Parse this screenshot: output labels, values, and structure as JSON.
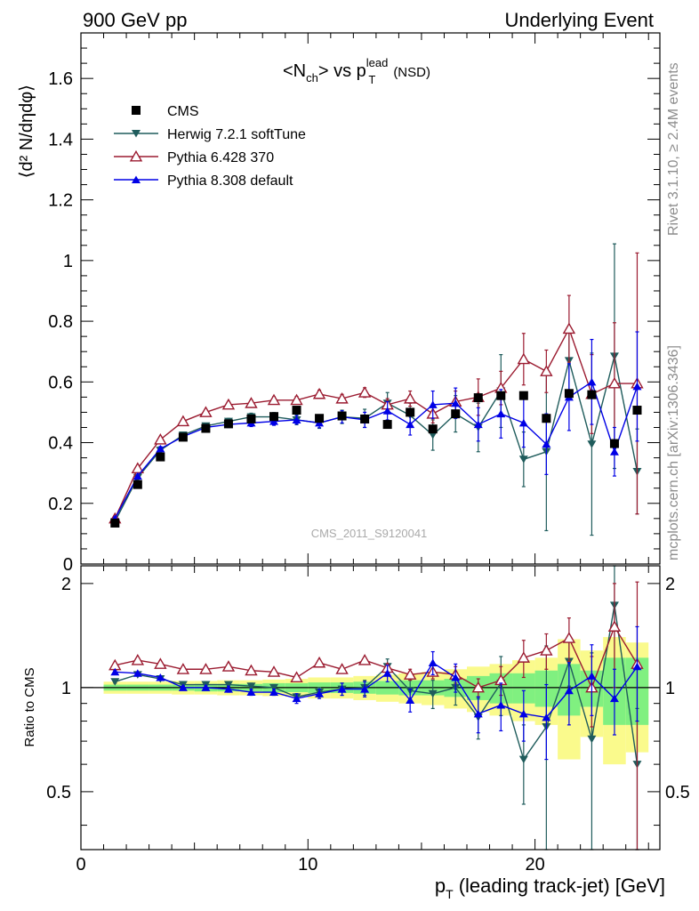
{
  "header": {
    "left": "900 GeV pp",
    "right": "Underlying Event"
  },
  "side_labels": {
    "rivet": "Rivet 3.1.10, ≥ 2.4M events",
    "mcplots": "mcplots.cern.ch [arXiv:1306.3436]"
  },
  "watermark": "CMS_2011_S9120041",
  "colors": {
    "cms": "#000000",
    "herwig": "#1f5c5c",
    "pythia6": "#9b1b30",
    "pythia8": "#0000e6",
    "band_inner": "#80f080",
    "band_outer": "#fafa8c"
  },
  "chart_data": [
    {
      "type": "scatter",
      "title": {
        "main": "<N",
        "main_sub": "ch",
        "mid": "> vs p",
        "sup": "lead",
        "sub2": "T",
        "tail": "(NSD)"
      },
      "ylabel": "⟨d² N/dηdφ⟩",
      "xlim": [
        0,
        25.5
      ],
      "ylim": [
        0,
        1.75
      ],
      "y_ticks": [
        {
          "v": 0,
          "label": "0"
        },
        {
          "v": 0.2,
          "label": "0.2"
        },
        {
          "v": 0.4,
          "label": "0.4"
        },
        {
          "v": 0.6,
          "label": "0.6"
        },
        {
          "v": 0.8,
          "label": "0.8"
        },
        {
          "v": 1.0,
          "label": "1"
        },
        {
          "v": 1.2,
          "label": "1.2"
        },
        {
          "v": 1.4,
          "label": "1.4"
        },
        {
          "v": 1.6,
          "label": "1.6"
        }
      ],
      "x": [
        1.5,
        2.5,
        3.5,
        4.5,
        5.5,
        6.5,
        7.5,
        8.5,
        9.5,
        10.5,
        11.5,
        12.5,
        13.5,
        14.5,
        15.5,
        16.5,
        17.5,
        18.5,
        19.5,
        20.5,
        21.5,
        22.5,
        23.5,
        24.5
      ],
      "legend": [
        {
          "name": "CMS",
          "key": "cms"
        },
        {
          "name": "Herwig 7.2.1 softTune",
          "key": "herwig"
        },
        {
          "name": "Pythia 6.428 370",
          "key": "pythia6"
        },
        {
          "name": "Pythia 8.308 default",
          "key": "pythia8"
        }
      ],
      "series": {
        "cms": {
          "name": "CMS",
          "values": [
            0.135,
            0.262,
            0.353,
            0.418,
            0.447,
            0.462,
            0.478,
            0.486,
            0.507,
            0.48,
            0.488,
            0.478,
            0.46,
            0.5,
            0.445,
            0.495,
            0.548,
            0.555,
            0.555,
            0.48,
            0.562,
            0.558,
            0.397,
            0.507
          ],
          "err": [
            0.003,
            0.003,
            0.003,
            0.003,
            0.003,
            0.003,
            0.003,
            0.003,
            0.003,
            0.003,
            0.003,
            0.003,
            0.003,
            0.003,
            0.003,
            0.003,
            0.003,
            0.003,
            0.003,
            0.003,
            0.003,
            0.003,
            0.003,
            0.003
          ]
        },
        "herwig": {
          "name": "Herwig 7.2.1 softTune",
          "values": [
            0.14,
            0.285,
            0.375,
            0.425,
            0.455,
            0.47,
            0.485,
            0.485,
            0.475,
            0.465,
            0.485,
            0.48,
            0.53,
            0.49,
            0.425,
            0.495,
            0.45,
            0.57,
            0.345,
            0.37,
            0.67,
            0.395,
            0.685,
            0.305
          ],
          "err": [
            0.005,
            0.006,
            0.007,
            0.008,
            0.009,
            0.01,
            0.012,
            0.014,
            0.016,
            0.018,
            0.022,
            0.03,
            0.035,
            0.04,
            0.05,
            0.06,
            0.08,
            0.12,
            0.09,
            0.26,
            0.1,
            0.3,
            0.37,
            0.14
          ]
        },
        "pythia6": {
          "name": "Pythia 6.428 370",
          "values": [
            0.15,
            0.315,
            0.41,
            0.47,
            0.5,
            0.525,
            0.53,
            0.54,
            0.54,
            0.56,
            0.545,
            0.565,
            0.525,
            0.545,
            0.495,
            0.535,
            0.55,
            0.58,
            0.675,
            0.635,
            0.775,
            0.56,
            0.595,
            0.595
          ],
          "err": [
            0.005,
            0.006,
            0.007,
            0.008,
            0.009,
            0.01,
            0.01,
            0.011,
            0.012,
            0.013,
            0.014,
            0.016,
            0.02,
            0.025,
            0.03,
            0.035,
            0.06,
            0.055,
            0.085,
            0.07,
            0.11,
            0.13,
            0.2,
            0.43
          ]
        },
        "pythia8": {
          "name": "Pythia 8.308 default",
          "values": [
            0.15,
            0.29,
            0.38,
            0.42,
            0.45,
            0.46,
            0.465,
            0.47,
            0.475,
            0.465,
            0.485,
            0.475,
            0.505,
            0.46,
            0.525,
            0.53,
            0.46,
            0.495,
            0.465,
            0.395,
            0.55,
            0.6,
            0.37,
            0.585
          ],
          "err": [
            0.005,
            0.006,
            0.007,
            0.008,
            0.009,
            0.01,
            0.012,
            0.013,
            0.014,
            0.016,
            0.02,
            0.025,
            0.03,
            0.035,
            0.045,
            0.05,
            0.055,
            0.08,
            0.08,
            0.1,
            0.11,
            0.14,
            0.08,
            0.18
          ]
        }
      }
    },
    {
      "type": "scatter",
      "ylabel": "Ratio to CMS",
      "xlabel": "p_T (leading track-jet) [GeV]",
      "xlabel_main": "p",
      "xlabel_sub": "T",
      "xlabel_rest": "(leading track-jet) [GeV]",
      "xlim": [
        0,
        25.5
      ],
      "ylim": [
        0.34,
        2.25
      ],
      "x_ticks": [
        {
          "v": 0,
          "label": "0"
        },
        {
          "v": 10,
          "label": "10"
        },
        {
          "v": 20,
          "label": "20"
        }
      ],
      "y_ticks": [
        {
          "v": 0.5,
          "label": "0.5"
        },
        {
          "v": 1,
          "label": "1"
        },
        {
          "v": 2,
          "label": "2"
        }
      ],
      "band_inner": [
        0.02,
        0.02,
        0.02,
        0.02,
        0.025,
        0.025,
        0.025,
        0.03,
        0.03,
        0.035,
        0.035,
        0.04,
        0.045,
        0.05,
        0.05,
        0.06,
        0.08,
        0.1,
        0.1,
        0.12,
        0.17,
        0.12,
        0.22,
        0.22
      ],
      "band_outer": [
        0.04,
        0.04,
        0.04,
        0.045,
        0.045,
        0.05,
        0.05,
        0.055,
        0.06,
        0.07,
        0.07,
        0.08,
        0.09,
        0.1,
        0.11,
        0.13,
        0.15,
        0.17,
        0.2,
        0.22,
        0.38,
        0.28,
        0.4,
        0.35
      ],
      "series": {
        "herwig": {
          "name": "Herwig 7.2.1 softTune",
          "values": [
            1.04,
            1.09,
            1.06,
            1.02,
            1.02,
            1.02,
            1.01,
            1.0,
            0.94,
            0.97,
            0.99,
            1.0,
            1.15,
            0.98,
            0.96,
            1.0,
            0.82,
            1.03,
            0.62,
            0.77,
            1.19,
            0.71,
            1.73,
            0.6
          ],
          "err": [
            0.01,
            0.01,
            0.01,
            0.01,
            0.01,
            0.01,
            0.02,
            0.02,
            0.02,
            0.03,
            0.04,
            0.05,
            0.06,
            0.07,
            0.09,
            0.11,
            0.11,
            0.2,
            0.16,
            0.55,
            0.18,
            0.55,
            0.8,
            0.27
          ]
        },
        "pythia6": {
          "name": "Pythia 6.428 370",
          "values": [
            1.16,
            1.2,
            1.17,
            1.13,
            1.13,
            1.15,
            1.12,
            1.11,
            1.07,
            1.18,
            1.13,
            1.2,
            1.14,
            1.09,
            1.11,
            1.09,
            1.0,
            1.05,
            1.22,
            1.28,
            1.39,
            1.0,
            1.5,
            1.17
          ],
          "err": [
            0.01,
            0.01,
            0.01,
            0.01,
            0.01,
            0.01,
            0.01,
            0.01,
            0.01,
            0.01,
            0.02,
            0.02,
            0.03,
            0.04,
            0.05,
            0.06,
            0.06,
            0.1,
            0.15,
            0.15,
            0.2,
            0.23,
            0.5,
            0.85
          ]
        },
        "pythia8": {
          "name": "Pythia 8.308 default",
          "values": [
            1.11,
            1.1,
            1.07,
            1.0,
            1.0,
            0.99,
            0.97,
            0.97,
            0.93,
            0.96,
            0.99,
            0.99,
            1.1,
            0.92,
            1.18,
            1.07,
            0.84,
            0.89,
            0.84,
            0.82,
            0.98,
            1.08,
            0.93,
            1.15
          ],
          "err": [
            0.01,
            0.01,
            0.01,
            0.01,
            0.01,
            0.02,
            0.02,
            0.02,
            0.03,
            0.03,
            0.04,
            0.05,
            0.06,
            0.07,
            0.09,
            0.1,
            0.1,
            0.14,
            0.14,
            0.2,
            0.2,
            0.25,
            0.2,
            0.35
          ]
        }
      }
    }
  ]
}
